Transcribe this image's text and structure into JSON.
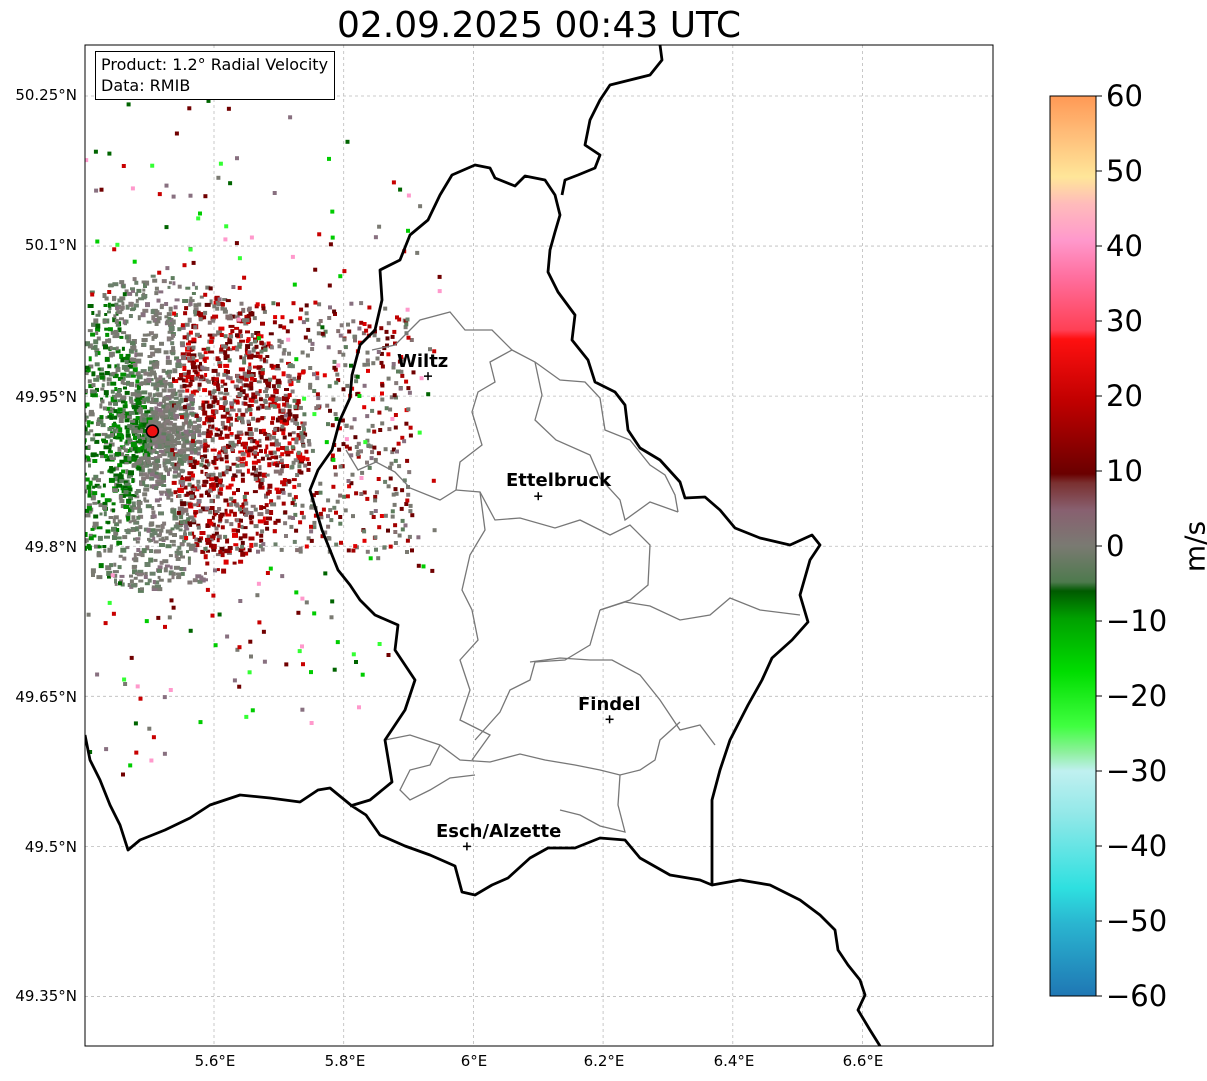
{
  "title": "02.09.2025 00:43 UTC",
  "info": {
    "product": "Product: 1.2° Radial Velocity",
    "source": "Data: RMIB"
  },
  "axes": {
    "lat_ticks": [
      "50.25°N",
      "50.1°N",
      "49.95°N",
      "49.8°N",
      "49.65°N",
      "49.5°N",
      "49.35°N"
    ],
    "lon_ticks": [
      "5.6°E",
      "5.8°E",
      "6°E",
      "6.2°E",
      "6.4°E",
      "6.6°E"
    ],
    "lat_values": [
      50.25,
      50.1,
      49.95,
      49.8,
      49.65,
      49.5,
      49.35
    ],
    "lon_values": [
      5.6,
      5.8,
      6.0,
      6.2,
      6.4,
      6.6
    ],
    "grid": "dashed"
  },
  "cities": [
    {
      "name": "Wiltz",
      "lon": 5.93,
      "lat": 49.97
    },
    {
      "name": "Ettelbruck",
      "lon": 6.1,
      "lat": 49.85
    },
    {
      "name": "Findel",
      "lon": 6.21,
      "lat": 49.627
    },
    {
      "name": "Esch/Alzette",
      "lon": 5.99,
      "lat": 49.5
    }
  ],
  "radar_site": {
    "lon": 5.505,
    "lat": 49.915
  },
  "colorbar": {
    "unit": "m/s",
    "min": -60,
    "max": 60,
    "ticks": [
      "60",
      "50",
      "40",
      "30",
      "20",
      "10",
      "0",
      "−10",
      "−20",
      "−30",
      "−40",
      "−50",
      "−60"
    ],
    "colors": {
      "neg_60": "#1f77b4",
      "neg_50": "#2ee0e0",
      "neg_40": "#b0f0f0",
      "neg_30": "#33ff33",
      "neg_20": "#00cc00",
      "neg_10": "#006400",
      "zero": "#7a7a72",
      "pos_10": "#700000",
      "pos_20": "#c80000",
      "pos_30": "#ff5566",
      "pos_40": "#ff99cc",
      "pos_50": "#ffcc88",
      "pos_60": "#ff9955"
    }
  }
}
